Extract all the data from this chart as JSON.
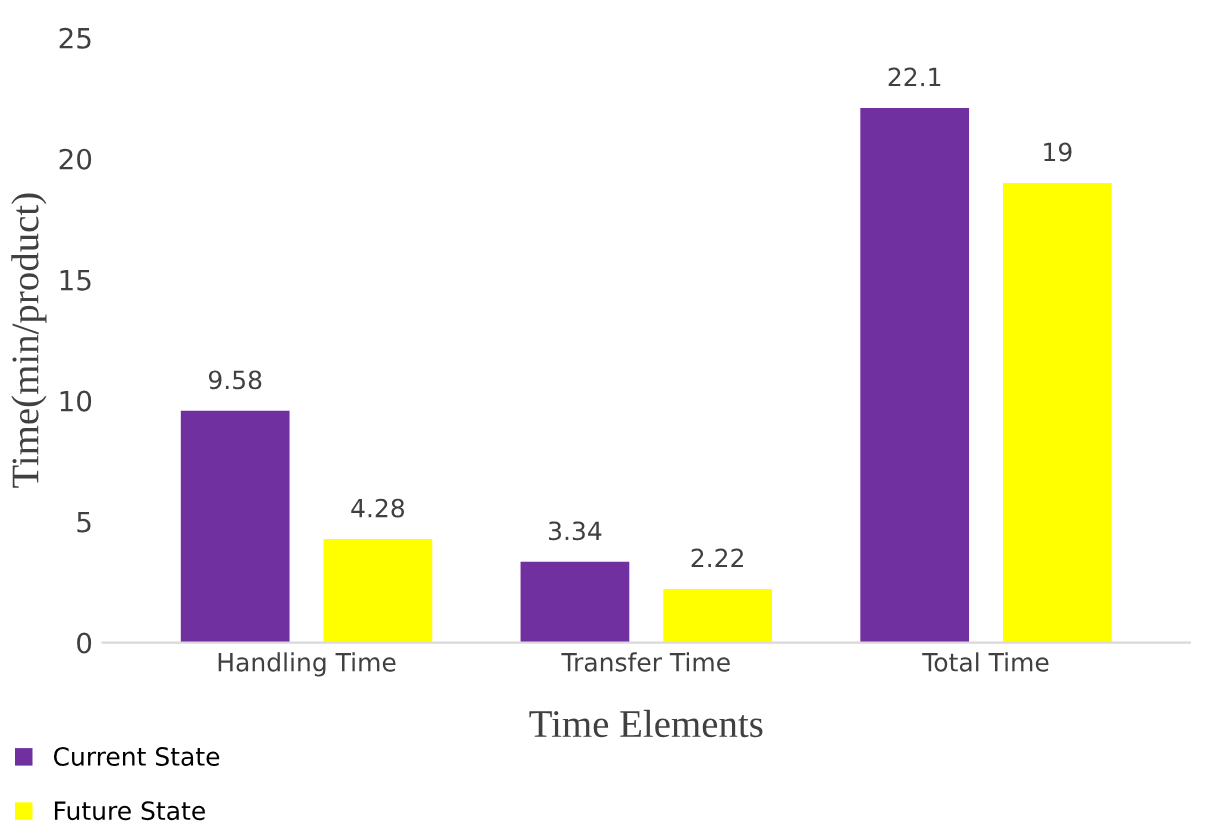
{
  "chart_data": {
    "type": "bar",
    "xlabel": "Time Elements",
    "ylabel": "Time(min/product)",
    "categories": [
      "Handling Time",
      "Transfer Time",
      "Total Time"
    ],
    "series": [
      {
        "name": "Current State",
        "color": "#7030a0",
        "values": [
          9.58,
          3.34,
          22.1
        ]
      },
      {
        "name": "Future State",
        "color": "#ffff00",
        "values": [
          4.28,
          2.22,
          19
        ]
      }
    ],
    "ylim": [
      0,
      25
    ],
    "yticks": [
      0,
      5,
      10,
      15,
      20,
      25
    ],
    "data_labels": true,
    "grid": false,
    "legend": "bottom left"
  }
}
